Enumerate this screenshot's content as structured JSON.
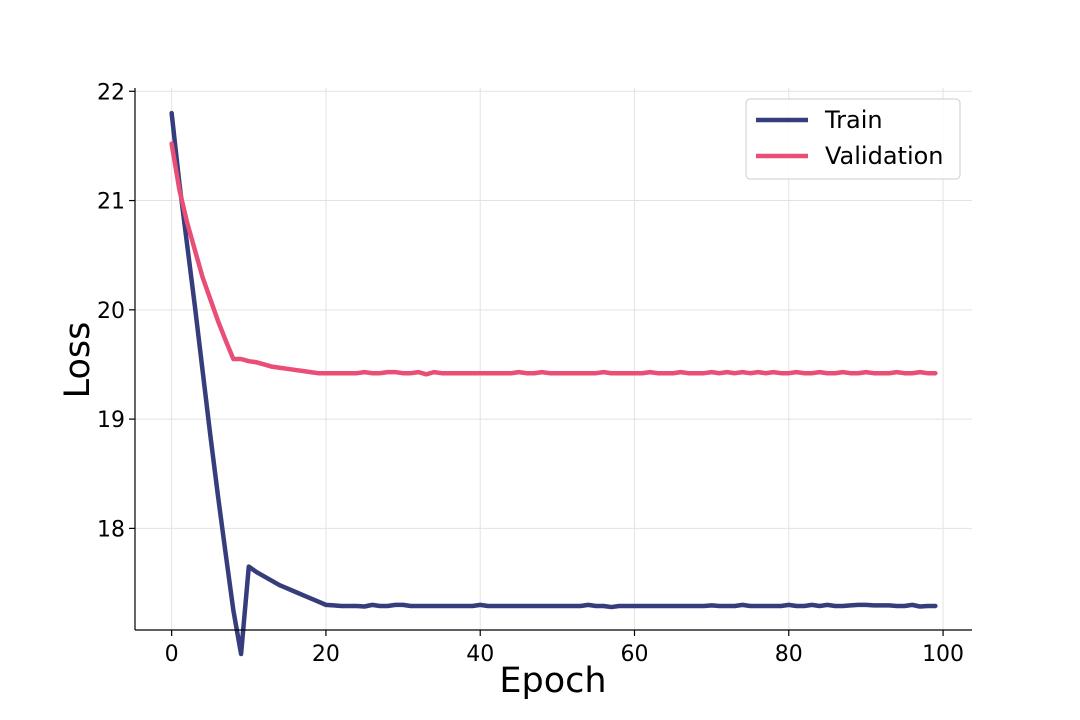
{
  "chart_data": {
    "type": "line",
    "xlabel": "Epoch",
    "ylabel": "Loss",
    "xlim": [
      -4.75,
      103.75
    ],
    "ylim": [
      17.07,
      22.03
    ],
    "xticks": [
      0,
      20,
      40,
      60,
      80,
      100
    ],
    "yticks": [
      18,
      19,
      20,
      21,
      22
    ],
    "grid": true,
    "legend_position": "top-right",
    "series": [
      {
        "name": "Train",
        "color": "#363d7c",
        "x": [
          0,
          1,
          2,
          3,
          4,
          5,
          6,
          7,
          8,
          9,
          10,
          11,
          12,
          13,
          14,
          15,
          16,
          17,
          18,
          19,
          20,
          21,
          22,
          23,
          24,
          25,
          26,
          27,
          28,
          29,
          30,
          31,
          32,
          33,
          34,
          35,
          36,
          37,
          38,
          39,
          40,
          41,
          42,
          43,
          44,
          45,
          46,
          47,
          48,
          49,
          50,
          51,
          52,
          53,
          54,
          55,
          56,
          57,
          58,
          59,
          60,
          61,
          62,
          63,
          64,
          65,
          66,
          67,
          68,
          69,
          70,
          71,
          72,
          73,
          74,
          75,
          76,
          77,
          78,
          79,
          80,
          81,
          82,
          83,
          84,
          85,
          86,
          87,
          88,
          89,
          90,
          91,
          92,
          93,
          94,
          95,
          96,
          97,
          98,
          99
        ],
        "values": [
          21.8,
          21.16,
          20.6,
          20.04,
          19.45,
          18.86,
          18.3,
          17.77,
          17.25,
          16.85,
          17.65,
          17.6,
          17.56,
          17.52,
          17.48,
          17.45,
          17.42,
          17.39,
          17.36,
          17.33,
          17.3,
          17.295,
          17.29,
          17.29,
          17.29,
          17.285,
          17.3,
          17.29,
          17.29,
          17.3,
          17.3,
          17.29,
          17.29,
          17.29,
          17.29,
          17.29,
          17.29,
          17.29,
          17.29,
          17.29,
          17.3,
          17.29,
          17.29,
          17.29,
          17.29,
          17.29,
          17.29,
          17.29,
          17.29,
          17.29,
          17.29,
          17.29,
          17.29,
          17.29,
          17.3,
          17.29,
          17.29,
          17.28,
          17.29,
          17.29,
          17.29,
          17.29,
          17.29,
          17.29,
          17.29,
          17.29,
          17.29,
          17.29,
          17.29,
          17.29,
          17.295,
          17.29,
          17.29,
          17.29,
          17.3,
          17.29,
          17.29,
          17.29,
          17.29,
          17.29,
          17.3,
          17.29,
          17.29,
          17.3,
          17.29,
          17.3,
          17.29,
          17.29,
          17.295,
          17.3,
          17.3,
          17.295,
          17.295,
          17.295,
          17.29,
          17.29,
          17.3,
          17.285,
          17.29,
          17.29
        ]
      },
      {
        "name": "Validation",
        "color": "#e94e77",
        "x": [
          0,
          1,
          2,
          3,
          4,
          5,
          6,
          7,
          8,
          9,
          10,
          11,
          12,
          13,
          14,
          15,
          16,
          17,
          18,
          19,
          20,
          21,
          22,
          23,
          24,
          25,
          26,
          27,
          28,
          29,
          30,
          31,
          32,
          33,
          34,
          35,
          36,
          37,
          38,
          39,
          40,
          41,
          42,
          43,
          44,
          45,
          46,
          47,
          48,
          49,
          50,
          51,
          52,
          53,
          54,
          55,
          56,
          57,
          58,
          59,
          60,
          61,
          62,
          63,
          64,
          65,
          66,
          67,
          68,
          69,
          70,
          71,
          72,
          73,
          74,
          75,
          76,
          77,
          78,
          79,
          80,
          81,
          82,
          83,
          84,
          85,
          86,
          87,
          88,
          89,
          90,
          91,
          92,
          93,
          94,
          95,
          96,
          97,
          98,
          99
        ],
        "values": [
          21.52,
          21.1,
          20.8,
          20.55,
          20.3,
          20.1,
          19.9,
          19.72,
          19.55,
          19.55,
          19.53,
          19.52,
          19.5,
          19.48,
          19.47,
          19.46,
          19.45,
          19.44,
          19.43,
          19.42,
          19.42,
          19.42,
          19.42,
          19.42,
          19.42,
          19.43,
          19.42,
          19.42,
          19.43,
          19.43,
          19.42,
          19.42,
          19.43,
          19.41,
          19.43,
          19.42,
          19.42,
          19.42,
          19.42,
          19.42,
          19.42,
          19.42,
          19.42,
          19.42,
          19.42,
          19.43,
          19.42,
          19.42,
          19.43,
          19.42,
          19.42,
          19.42,
          19.42,
          19.42,
          19.42,
          19.42,
          19.43,
          19.42,
          19.42,
          19.42,
          19.42,
          19.42,
          19.43,
          19.42,
          19.42,
          19.42,
          19.43,
          19.42,
          19.42,
          19.42,
          19.43,
          19.42,
          19.43,
          19.42,
          19.43,
          19.42,
          19.43,
          19.42,
          19.43,
          19.42,
          19.42,
          19.43,
          19.42,
          19.42,
          19.43,
          19.42,
          19.42,
          19.43,
          19.42,
          19.42,
          19.43,
          19.42,
          19.42,
          19.42,
          19.43,
          19.42,
          19.42,
          19.43,
          19.42,
          19.42
        ]
      }
    ]
  }
}
